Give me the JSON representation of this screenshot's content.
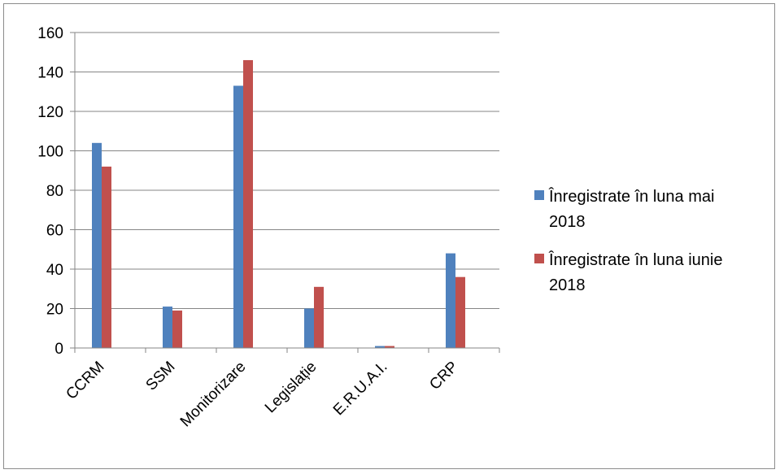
{
  "chart_data": {
    "type": "bar",
    "categories": [
      "CCRM",
      "SSM",
      "Monitorizare",
      "Legislație",
      "E.R.U.A.I.",
      "CRP"
    ],
    "series": [
      {
        "name": "Înregistrate în luna mai 2018",
        "values": [
          104,
          21,
          133,
          20,
          1,
          48
        ],
        "color": "#4f81bd"
      },
      {
        "name": "Înregistrate în luna iunie 2018",
        "values": [
          92,
          19,
          146,
          31,
          1,
          36
        ],
        "color": "#c0504d"
      }
    ],
    "title": "",
    "xlabel": "",
    "ylabel": "",
    "ylim": [
      0,
      160
    ],
    "yticks": [
      0,
      20,
      40,
      60,
      80,
      100,
      120,
      140,
      160
    ],
    "grid": true,
    "legend_position": "right"
  }
}
